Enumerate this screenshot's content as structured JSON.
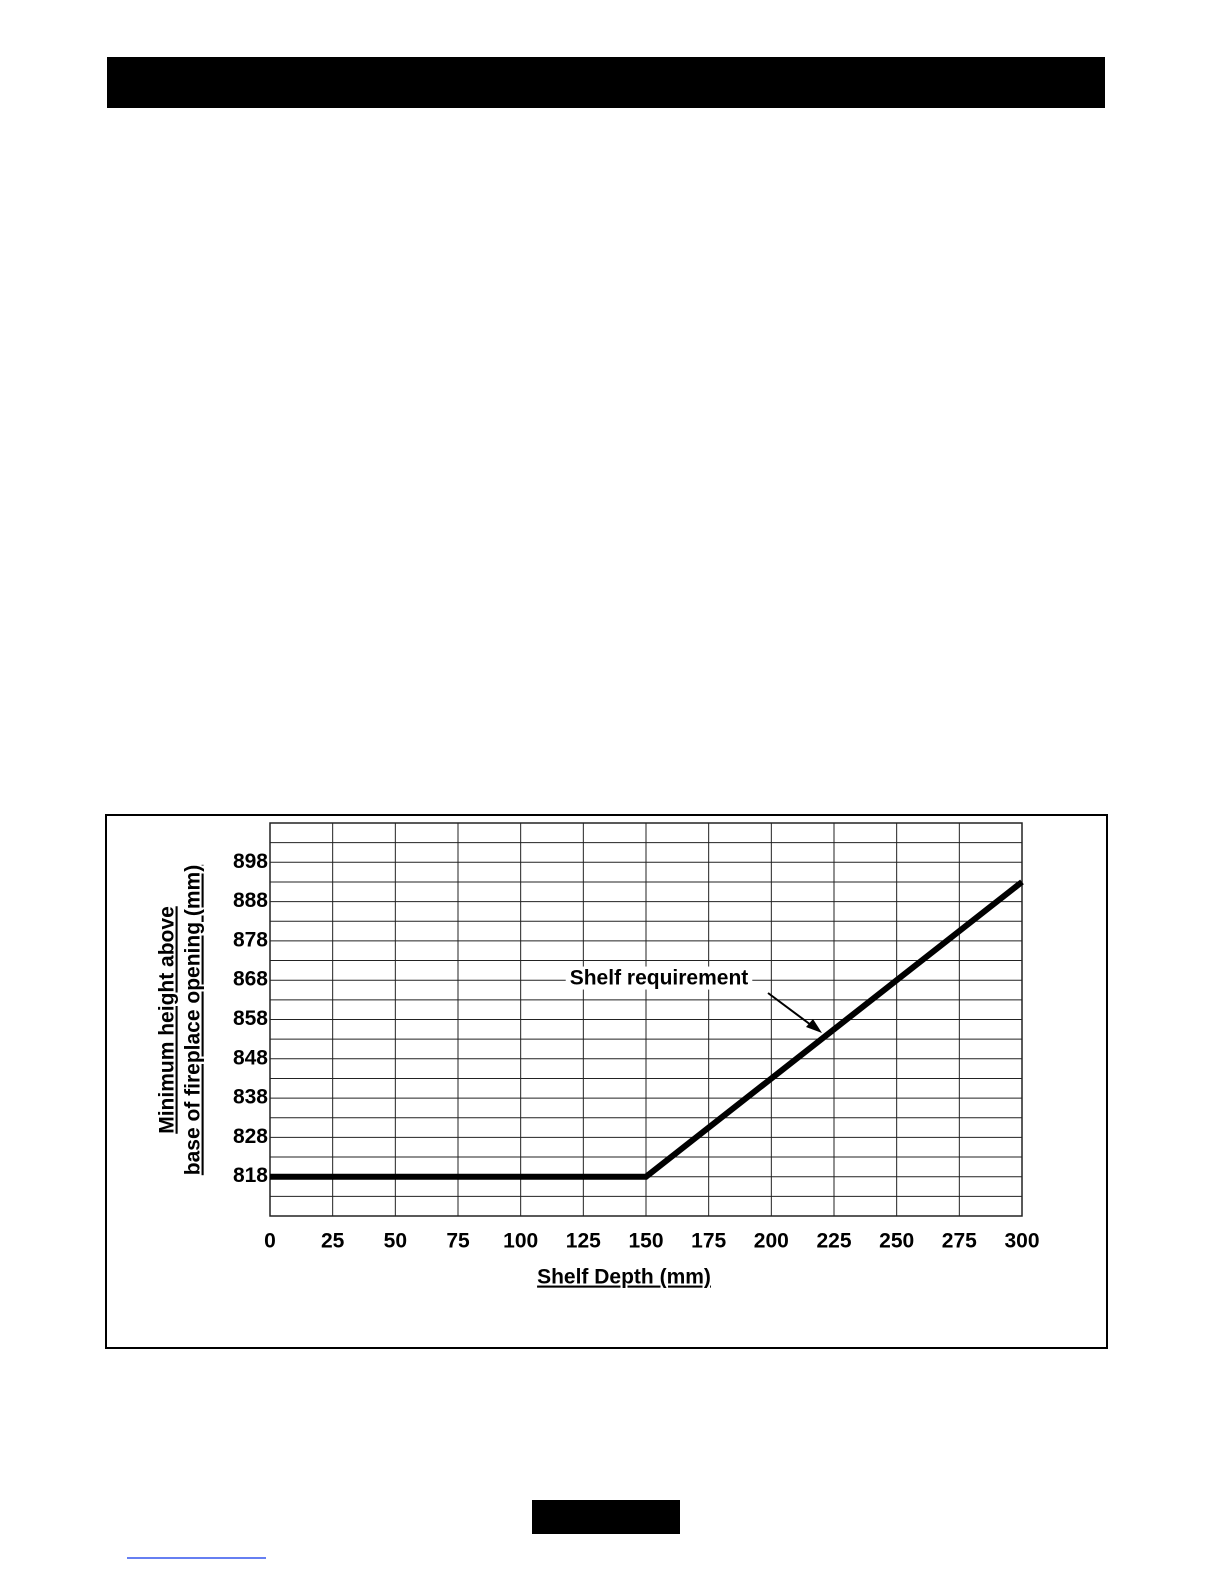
{
  "chart_data": {
    "type": "line",
    "x_label_lines": [
      "Shelf Depth (mm)"
    ],
    "y_label_lines": [
      "Minimum height above",
      "base of fireplace opening (mm)"
    ],
    "annotation": "Shelf requirement",
    "x": [
      0,
      150,
      300
    ],
    "values": [
      818,
      818,
      893
    ],
    "color": "#000000",
    "xlim": [
      0,
      300
    ],
    "xticks": [
      0,
      25,
      50,
      75,
      100,
      125,
      150,
      175,
      200,
      225,
      250,
      275,
      300
    ],
    "ylim": [
      808,
      908
    ],
    "yticks": [
      818,
      828,
      838,
      848,
      858,
      868,
      878,
      888,
      898
    ],
    "minor_yticks": [
      813,
      823,
      833,
      843,
      853,
      863,
      873,
      883,
      893,
      903
    ],
    "grid": true
  }
}
